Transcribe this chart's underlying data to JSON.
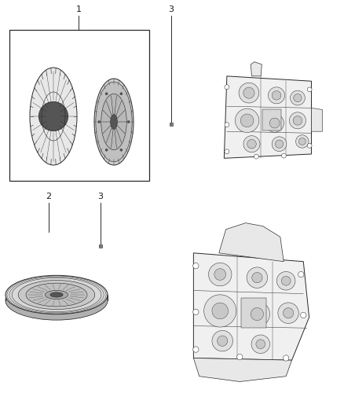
{
  "background_color": "#ffffff",
  "fig_width": 4.38,
  "fig_height": 5.33,
  "dpi": 100,
  "label_1": "1",
  "label_2": "2",
  "label_3": "3",
  "line_color": "#2a2a2a",
  "dark_color": "#1a1a1a",
  "gray_color": "#888888",
  "light_gray": "#cccccc"
}
